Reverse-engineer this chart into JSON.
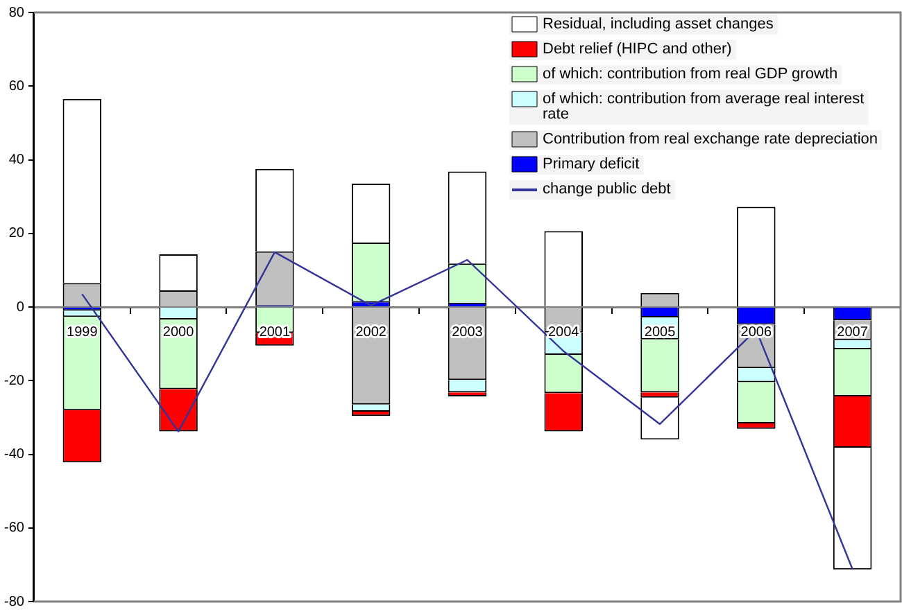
{
  "chart_data": {
    "type": "bar",
    "stacked": true,
    "categories": [
      "1999",
      "2000",
      "2001",
      "2002",
      "2003",
      "2004",
      "2005",
      "2006",
      "2007"
    ],
    "series": [
      {
        "name": "Primary deficit",
        "color": "#0000ff",
        "values": [
          -1,
          0,
          0.5,
          1.6,
          1.2,
          0,
          -2.8,
          -4.8,
          -3.6
        ]
      },
      {
        "name": "Contribution from real exchange rate depreciation",
        "color": "#c0c0c0",
        "values": [
          6.5,
          4.5,
          14.6,
          -26.5,
          -19.8,
          -6.9,
          3.8,
          -11.8,
          -5.4
        ]
      },
      {
        "name": "of which: contribution from average real interest rate",
        "color": "#ccffff",
        "values": [
          -1.7,
          -3.4,
          0,
          -1.9,
          -3.4,
          -6.1,
          -6,
          -3.8,
          -2.5
        ]
      },
      {
        "name": "of which: contribution from real GDP growth",
        "color": "#ccffcc",
        "values": [
          -25.3,
          -18.9,
          -7,
          15.9,
          10.6,
          -10.4,
          -14.4,
          -11.2,
          -12.8
        ]
      },
      {
        "name": "Debt relief (HIPC and other)",
        "color": "#ff0000",
        "values": [
          -14.2,
          -11.5,
          -3.5,
          -1.2,
          -1.1,
          -10.4,
          -1.4,
          -1.5,
          -13.9
        ]
      },
      {
        "name": "Residual, including asset changes",
        "color": "#ffffff",
        "values": [
          50,
          9.8,
          22.4,
          16,
          25,
          20.6,
          -11.4,
          27.2,
          -33.1
        ]
      },
      {
        "name": "change public debt",
        "type": "line",
        "color": "#333399",
        "values": [
          3.5,
          -33.8,
          14.9,
          0.4,
          12.8,
          -12,
          -31.8,
          -6.2,
          -71.2
        ]
      }
    ],
    "ylim": [
      -80,
      80
    ],
    "yticks": [
      -80,
      -60,
      -40,
      -20,
      0,
      20,
      40,
      60,
      80
    ],
    "grid": false,
    "legend": "top right",
    "marker": "none",
    "line_style": "solid"
  }
}
